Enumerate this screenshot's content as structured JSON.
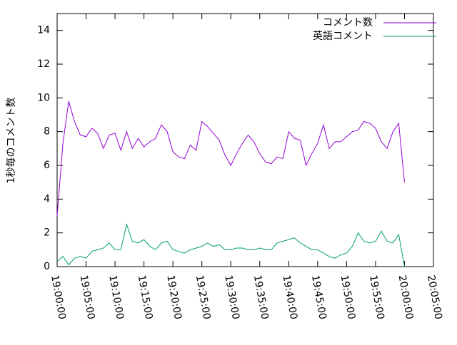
{
  "chart_data": {
    "type": "line",
    "y_label": "1秒毎のコメント数",
    "x": [
      "19:00:00",
      "19:01:00",
      "19:02:00",
      "19:03:00",
      "19:04:00",
      "19:05:00",
      "19:06:00",
      "19:07:00",
      "19:08:00",
      "19:09:00",
      "19:10:00",
      "19:11:00",
      "19:12:00",
      "19:13:00",
      "19:14:00",
      "19:15:00",
      "19:16:00",
      "19:17:00",
      "19:18:00",
      "19:19:00",
      "19:20:00",
      "19:21:00",
      "19:22:00",
      "19:23:00",
      "19:24:00",
      "19:25:00",
      "19:26:00",
      "19:27:00",
      "19:28:00",
      "19:29:00",
      "19:30:00",
      "19:31:00",
      "19:32:00",
      "19:33:00",
      "19:34:00",
      "19:35:00",
      "19:36:00",
      "19:37:00",
      "19:38:00",
      "19:39:00",
      "19:40:00",
      "19:41:00",
      "19:42:00",
      "19:43:00",
      "19:44:00",
      "19:45:00",
      "19:46:00",
      "19:47:00",
      "19:48:00",
      "19:49:00",
      "19:50:00",
      "19:51:00",
      "19:52:00",
      "19:53:00",
      "19:54:00",
      "19:55:00",
      "19:56:00",
      "19:57:00",
      "19:58:00",
      "19:59:00",
      "20:00:00"
    ],
    "series": [
      {
        "name": "コメント数",
        "color": "#9400d3",
        "values": [
          3.0,
          7.3,
          9.8,
          8.6,
          7.8,
          7.7,
          8.2,
          7.9,
          7.0,
          7.8,
          7.9,
          6.9,
          8.0,
          7.0,
          7.6,
          7.1,
          7.4,
          7.6,
          8.4,
          8.0,
          6.8,
          6.5,
          6.4,
          7.2,
          6.9,
          8.6,
          8.3,
          7.9,
          7.5,
          6.6,
          6.0,
          6.7,
          7.3,
          7.8,
          7.4,
          6.7,
          6.2,
          6.1,
          6.5,
          6.4,
          8.0,
          7.6,
          7.5,
          6.0,
          6.7,
          7.3,
          8.4,
          7.0,
          7.4,
          7.4,
          7.7,
          8.0,
          8.1,
          8.6,
          8.5,
          8.2,
          7.4,
          7.0,
          8.0,
          8.5,
          5.0
        ]
      },
      {
        "name": "英語コメント",
        "color": "#009e73",
        "values": [
          0.3,
          0.6,
          0.1,
          0.5,
          0.6,
          0.5,
          0.9,
          1.0,
          1.1,
          1.4,
          1.0,
          1.0,
          2.5,
          1.5,
          1.4,
          1.6,
          1.2,
          1.0,
          1.4,
          1.5,
          1.0,
          0.9,
          0.8,
          1.0,
          1.1,
          1.2,
          1.4,
          1.2,
          1.3,
          1.0,
          1.0,
          1.1,
          1.1,
          1.0,
          1.0,
          1.1,
          1.0,
          1.0,
          1.4,
          1.5,
          1.6,
          1.7,
          1.4,
          1.2,
          1.0,
          1.0,
          0.8,
          0.6,
          0.5,
          0.7,
          0.8,
          1.2,
          2.0,
          1.5,
          1.4,
          1.5,
          2.1,
          1.5,
          1.4,
          1.9,
          0.0
        ]
      }
    ],
    "xlim": [
      "19:00:00",
      "20:05:00"
    ],
    "xticks": [
      "19:00:00",
      "19:05:00",
      "19:10:00",
      "19:15:00",
      "19:20:00",
      "19:25:00",
      "19:30:00",
      "19:35:00",
      "19:40:00",
      "19:45:00",
      "19:50:00",
      "19:55:00",
      "20:00:00",
      "20:05:00"
    ],
    "ylim": [
      0,
      15
    ],
    "yticks": [
      0,
      2,
      4,
      6,
      8,
      10,
      12,
      14
    ],
    "legend": "top-right"
  }
}
